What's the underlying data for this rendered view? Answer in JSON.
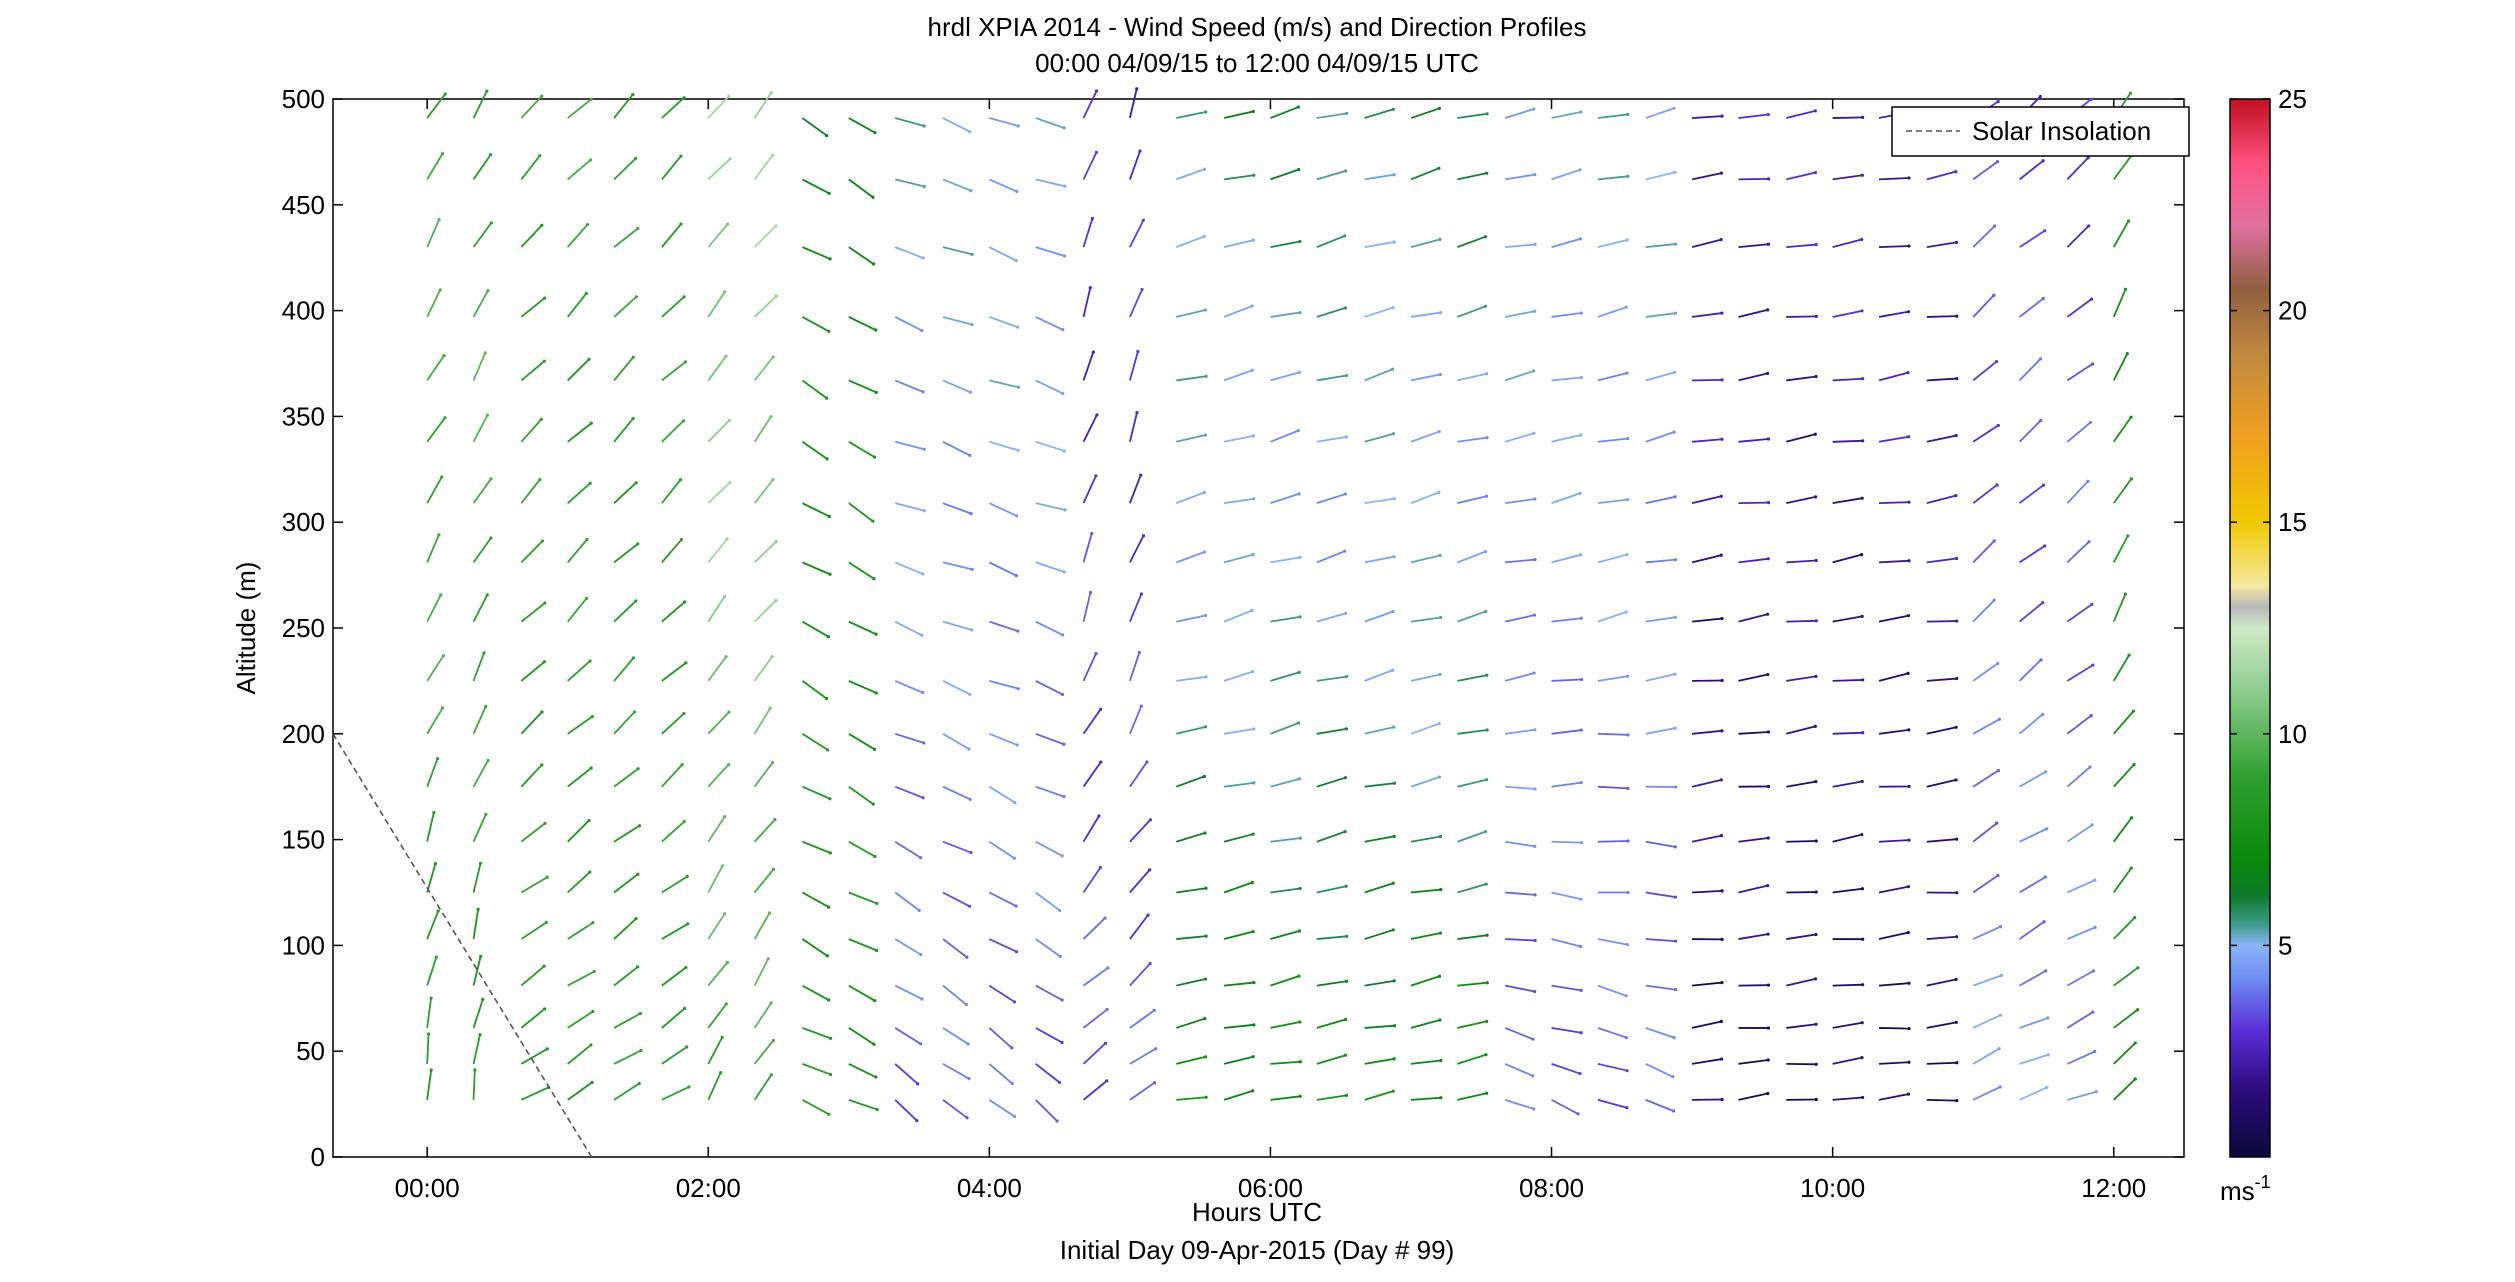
{
  "chart_data": {
    "type": "wind-barb-profile",
    "title": "hrdl XPIA 2014 - Wind Speed (m/s) and Direction Profiles",
    "subtitle": "00:00 04/09/15 to 12:00 04/09/15  UTC",
    "xlabel": "Hours UTC",
    "xlabel2": "Initial Day 09-Apr-2015 (Day # 99)",
    "ylabel": "Altitude (m)",
    "xlim": [
      -0.67,
      12.5
    ],
    "ylim": [
      0,
      500
    ],
    "xticks": [
      {
        "value": 0,
        "label": "00:00"
      },
      {
        "value": 2,
        "label": "02:00"
      },
      {
        "value": 4,
        "label": "04:00"
      },
      {
        "value": 6,
        "label": "06:00"
      },
      {
        "value": 8,
        "label": "08:00"
      },
      {
        "value": 10,
        "label": "10:00"
      },
      {
        "value": 12,
        "label": "12:00"
      }
    ],
    "yticks": [
      0,
      50,
      100,
      150,
      200,
      250,
      300,
      350,
      400,
      450,
      500
    ],
    "legend": {
      "position": "top-right",
      "entries": [
        "Solar Insolation"
      ]
    },
    "colorbar": {
      "min": 0,
      "max": 25,
      "ticks": [
        5,
        10,
        15,
        20,
        25
      ],
      "unit_label": "ms",
      "unit_exponent": "-1",
      "stops": [
        {
          "v": 0,
          "c": "#0a0a3a"
        },
        {
          "v": 1.5,
          "c": "#2b0a7a"
        },
        {
          "v": 3,
          "c": "#5a2fd8"
        },
        {
          "v": 4.2,
          "c": "#6d8cf0"
        },
        {
          "v": 5,
          "c": "#89b4f8"
        },
        {
          "v": 5.5,
          "c": "#3f9a8a"
        },
        {
          "v": 6.2,
          "c": "#0d7a2a"
        },
        {
          "v": 7,
          "c": "#0a8a0a"
        },
        {
          "v": 9,
          "c": "#30a030"
        },
        {
          "v": 11,
          "c": "#8ccc8c"
        },
        {
          "v": 12.5,
          "c": "#cfe8c8"
        },
        {
          "v": 13,
          "c": "#b8b8b8"
        },
        {
          "v": 13.5,
          "c": "#f4e8a0"
        },
        {
          "v": 15,
          "c": "#f0c800"
        },
        {
          "v": 17,
          "c": "#f0a020"
        },
        {
          "v": 19,
          "c": "#c08840"
        },
        {
          "v": 20.5,
          "c": "#906040"
        },
        {
          "v": 22,
          "c": "#e070a0"
        },
        {
          "v": 23.5,
          "c": "#ff5080"
        },
        {
          "v": 25,
          "c": "#c01020"
        }
      ]
    },
    "solar_insolation": {
      "x": [
        -0.67,
        1.17
      ],
      "y": [
        200,
        0
      ],
      "style": "dashed",
      "color": "#555555"
    },
    "barb_heights": [
      27,
      44,
      61,
      81,
      103,
      125,
      149,
      175,
      200,
      225,
      253,
      281,
      309,
      338,
      367,
      397,
      430,
      462,
      491
    ],
    "barb_times": [
      0,
      0.33,
      0.67,
      1,
      1.33,
      1.67,
      2,
      2.33,
      2.67,
      3,
      3.33,
      3.67,
      4,
      4.33,
      4.67,
      5,
      5.33,
      5.67,
      6,
      6.33,
      6.67,
      7,
      7.33,
      7.67,
      8,
      8.33,
      8.67,
      9,
      9.33,
      9.67,
      10,
      10.33,
      10.67,
      11,
      11.33,
      11.67,
      12
    ],
    "wind_regimes": [
      {
        "t0": 0,
        "t1": 0.5,
        "speed_low": 8,
        "speed_high": 9.5,
        "speed_upper": 9,
        "angle_low": 85,
        "angle_high": 60
      },
      {
        "t0": 0.5,
        "t1": 1.9,
        "speed_low": 8.5,
        "speed_high": 8.5,
        "speed_upper": 9,
        "angle_low": 30,
        "angle_high": 45
      },
      {
        "t0": 1.9,
        "t1": 2.4,
        "speed_low": 9,
        "speed_high": 11,
        "speed_upper": 11,
        "angle_low": 60,
        "angle_high": 50
      },
      {
        "t0": 2.4,
        "t1": 3.3,
        "speed_low": 8,
        "speed_high": 7.5,
        "speed_upper": 7,
        "angle_low": -25,
        "angle_high": -30
      },
      {
        "t0": 3.3,
        "t1": 4.4,
        "speed_low": 3.5,
        "speed_high": 4.5,
        "speed_upper": 5,
        "angle_low": -40,
        "angle_high": -20
      },
      {
        "t0": 4.4,
        "t1": 5.1,
        "speed_low": 3.5,
        "speed_high": 3,
        "speed_upper": 2.5,
        "angle_low": 30,
        "angle_high": 70
      },
      {
        "t0": 5.1,
        "t1": 7.6,
        "speed_low": 7.5,
        "speed_high": 4.5,
        "speed_upper": 6,
        "angle_low": 10,
        "angle_high": 15
      },
      {
        "t0": 7.6,
        "t1": 9.0,
        "speed_low": 3.5,
        "speed_high": 4.5,
        "speed_upper": 5,
        "angle_low": -25,
        "angle_high": 12
      },
      {
        "t0": 9.0,
        "t1": 10.7,
        "speed_low": 1,
        "speed_high": 2,
        "speed_upper": 2.5,
        "angle_low": 5,
        "angle_high": 8
      },
      {
        "t0": 10.7,
        "t1": 11.8,
        "speed_low": 4.5,
        "speed_high": 3.5,
        "speed_upper": 3,
        "angle_low": 20,
        "angle_high": 40
      },
      {
        "t0": 11.8,
        "t1": 12.4,
        "speed_low": 7.5,
        "speed_high": 8,
        "speed_upper": 8,
        "angle_low": 35,
        "angle_high": 60
      }
    ]
  }
}
